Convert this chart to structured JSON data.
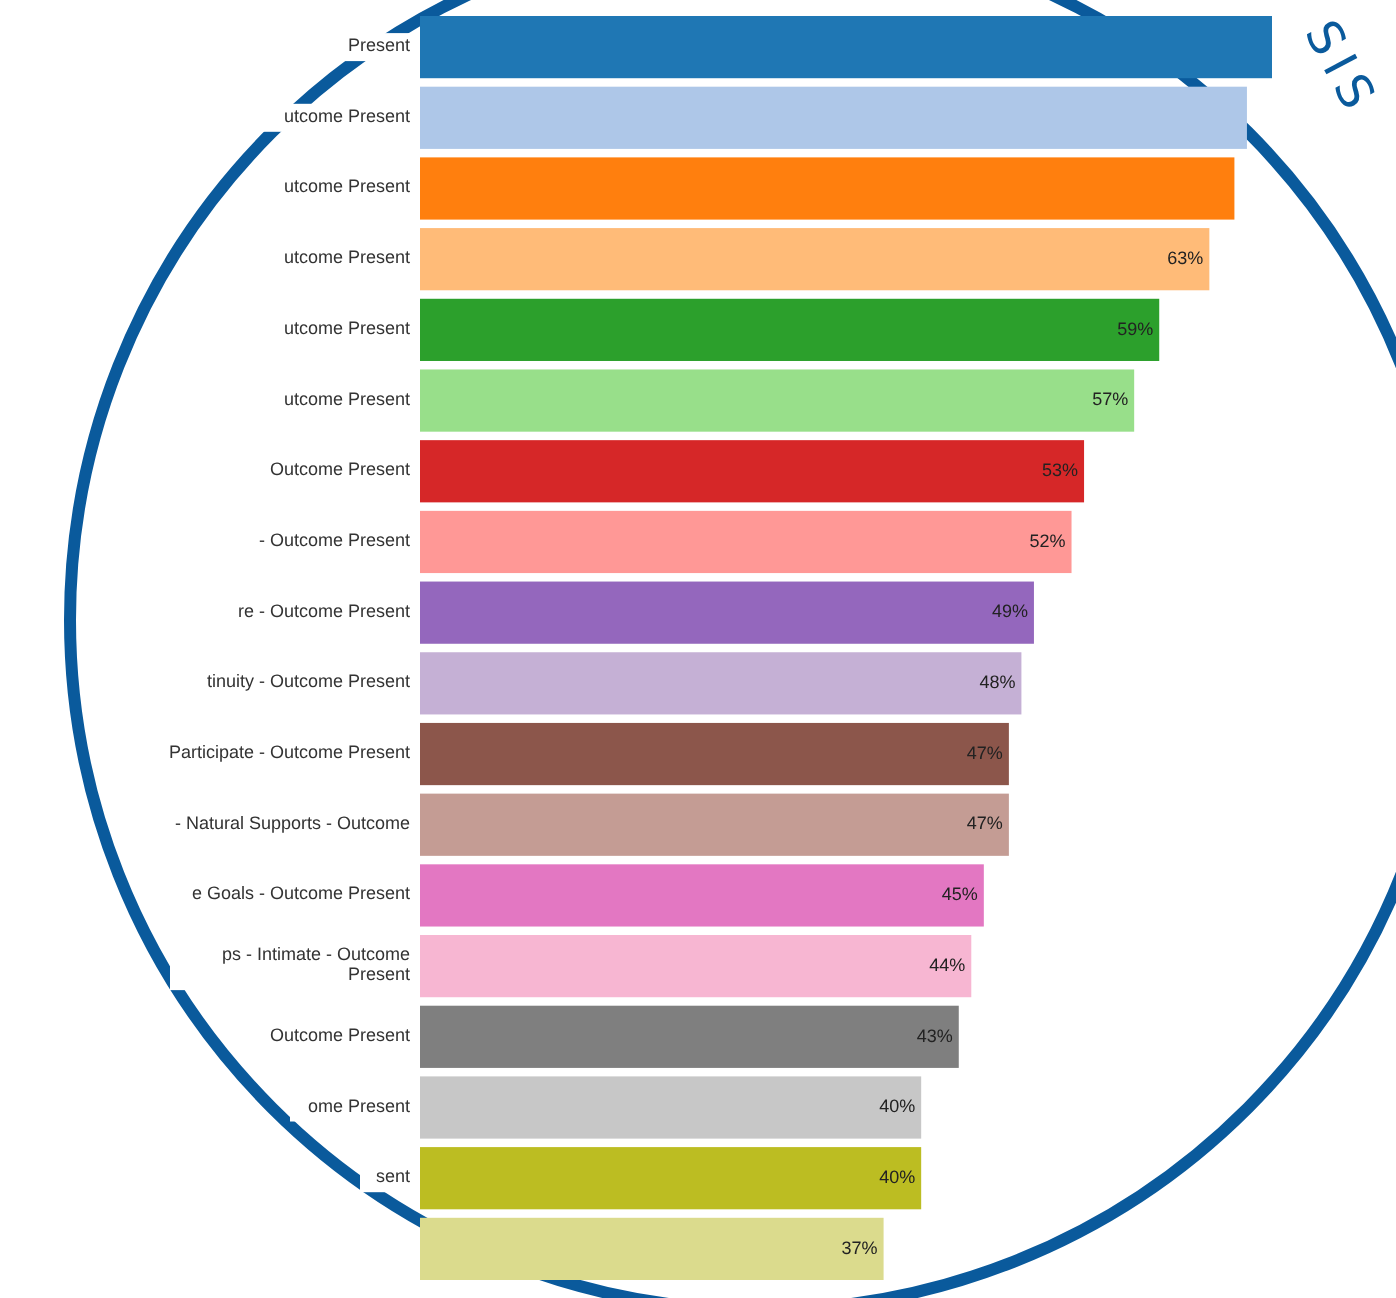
{
  "chart_data": {
    "type": "bar",
    "orientation": "horizontal",
    "categories": [
      "Present",
      "utcome Present",
      "utcome Present",
      "utcome Present",
      "utcome Present",
      "utcome Present",
      "Outcome Present",
      "- Outcome Present",
      "re - Outcome Present",
      "tinuity - Outcome Present",
      "Participate - Outcome Present",
      "- Natural Supports - Outcome",
      "e Goals - Outcome Present",
      "ps - Intimate - Outcome Present",
      "Outcome Present",
      "ome Present",
      "sent",
      null
    ],
    "values": [
      68,
      66,
      65,
      63,
      59,
      57,
      53,
      52,
      49,
      48,
      47,
      47,
      45,
      44,
      43,
      40,
      40,
      37
    ],
    "value_labels": [
      null,
      null,
      null,
      "63%",
      "59%",
      "57%",
      "53%",
      "52%",
      "49%",
      "48%",
      "47%",
      "47%",
      "45%",
      "44%",
      "43%",
      "40%",
      "40%",
      "37%"
    ],
    "colors": [
      "#1f77b4",
      "#aec7e8",
      "#ff7f0e",
      "#ffbb78",
      "#2ca02c",
      "#98df8a",
      "#d62728",
      "#ff9896",
      "#9467bd",
      "#c5b0d5",
      "#8c564b",
      "#c49c94",
      "#e377c2",
      "#f7b6d2",
      "#7f7f7f",
      "#c7c7c7",
      "#bcbd22",
      "#dbdb8d"
    ],
    "annotations": [
      "SIS"
    ]
  }
}
